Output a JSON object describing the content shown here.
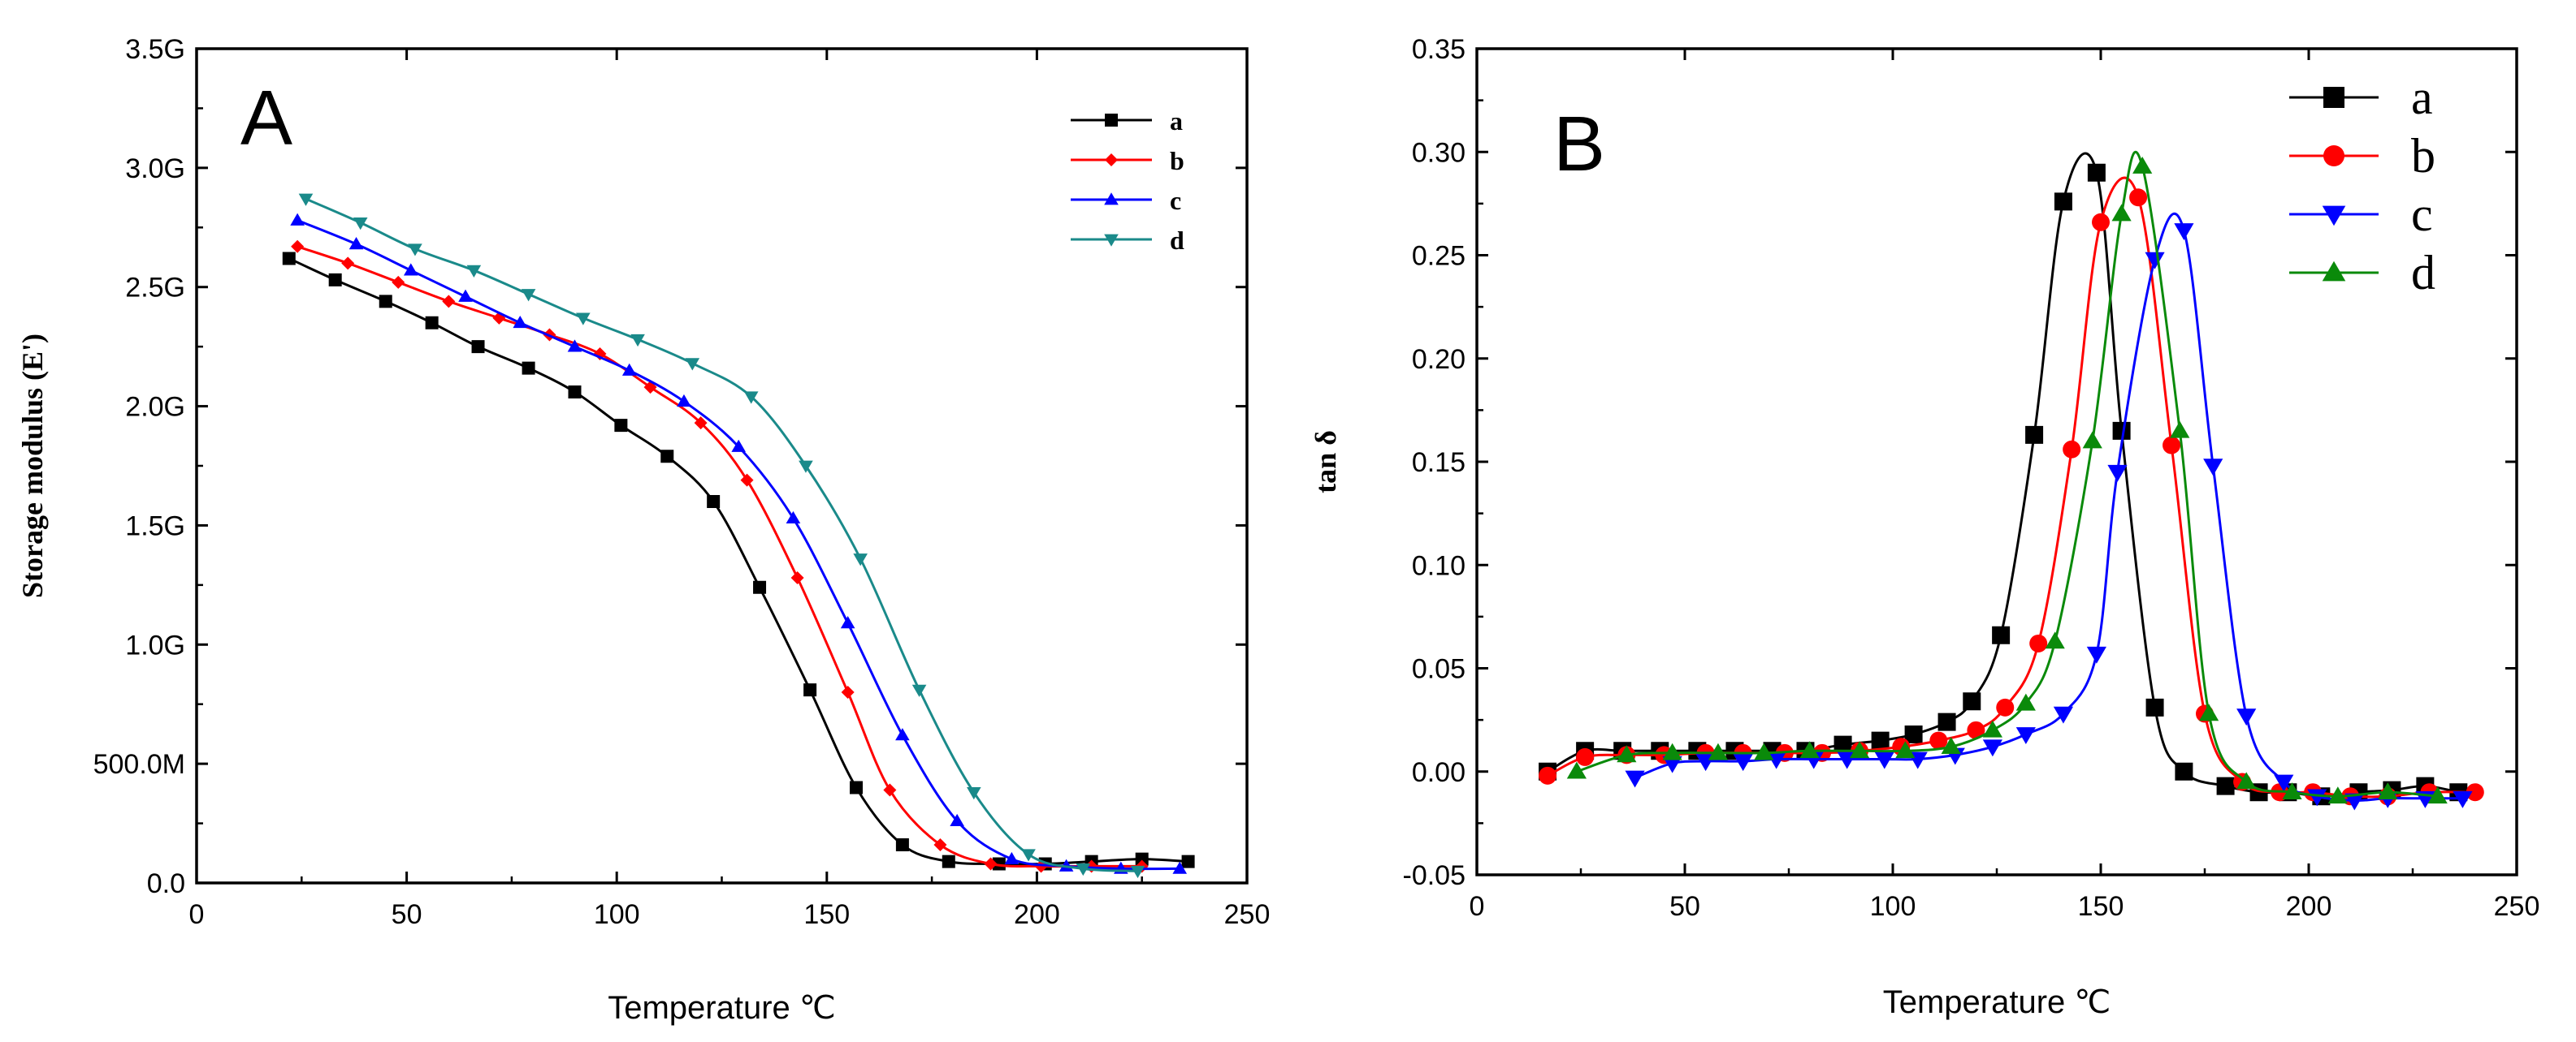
{
  "chart_data": [
    {
      "type": "line",
      "panel_label": "A",
      "xlabel": "Temperature ℃",
      "ylabel": "Storage modulus (E')",
      "xlim": [
        0,
        250
      ],
      "ylim": [
        0,
        3.5
      ],
      "x_ticks": [
        0,
        50,
        100,
        150,
        200,
        250
      ],
      "x_tick_labels": [
        "0",
        "50",
        "100",
        "150",
        "200",
        "250"
      ],
      "y_ticks": [
        0,
        0.5,
        1.0,
        1.5,
        2.0,
        2.5,
        3.0,
        3.5
      ],
      "y_tick_labels": [
        "0.0",
        "500.0M",
        "1.0G",
        "1.5G",
        "2.0G",
        "2.5G",
        "3.0G",
        "3.5G"
      ],
      "legend_position": "top-right",
      "series": [
        {
          "name": "a",
          "color": "#000000",
          "marker": "square",
          "x": [
            22,
            33,
            45,
            56,
            67,
            79,
            90,
            101,
            112,
            123,
            134,
            146,
            157,
            168,
            179,
            191,
            202,
            213,
            225,
            236
          ],
          "y": [
            2.62,
            2.53,
            2.44,
            2.35,
            2.25,
            2.16,
            2.06,
            1.92,
            1.79,
            1.6,
            1.24,
            0.81,
            0.4,
            0.16,
            0.09,
            0.08,
            0.08,
            0.09,
            0.1,
            0.09
          ]
        },
        {
          "name": "b",
          "color": "#ff0000",
          "marker": "diamond",
          "x": [
            24,
            36,
            48,
            60,
            72,
            84,
            96,
            108,
            120,
            131,
            143,
            155,
            165,
            177,
            189,
            201,
            213,
            225
          ],
          "y": [
            2.67,
            2.6,
            2.52,
            2.44,
            2.37,
            2.3,
            2.22,
            2.08,
            1.93,
            1.69,
            1.28,
            0.8,
            0.39,
            0.16,
            0.08,
            0.07,
            0.07,
            0.07
          ]
        },
        {
          "name": "c",
          "color": "#0000ff",
          "marker": "triangle-up",
          "x": [
            24,
            38,
            51,
            64,
            77,
            90,
            103,
            116,
            129,
            142,
            155,
            168,
            181,
            194,
            207,
            220,
            234
          ],
          "y": [
            2.78,
            2.68,
            2.57,
            2.46,
            2.35,
            2.25,
            2.15,
            2.02,
            1.83,
            1.53,
            1.09,
            0.62,
            0.26,
            0.1,
            0.07,
            0.06,
            0.06
          ]
        },
        {
          "name": "d",
          "color": "#1a8a8a",
          "marker": "triangle-down",
          "x": [
            26,
            39,
            52,
            66,
            79,
            92,
            105,
            118,
            132,
            145,
            158,
            172,
            185,
            198,
            211,
            224
          ],
          "y": [
            2.87,
            2.77,
            2.66,
            2.57,
            2.47,
            2.37,
            2.28,
            2.18,
            2.04,
            1.75,
            1.36,
            0.81,
            0.38,
            0.12,
            0.06,
            0.05
          ]
        }
      ]
    },
    {
      "type": "line",
      "panel_label": "B",
      "xlabel": "Temperature ℃",
      "ylabel": "tan δ",
      "xlim": [
        0,
        250
      ],
      "ylim": [
        -0.05,
        0.35
      ],
      "x_ticks": [
        0,
        50,
        100,
        150,
        200,
        250
      ],
      "x_tick_labels": [
        "0",
        "50",
        "100",
        "150",
        "200",
        "250"
      ],
      "y_ticks": [
        -0.05,
        0,
        0.05,
        0.1,
        0.15,
        0.2,
        0.25,
        0.3,
        0.35
      ],
      "y_tick_labels": [
        "-0.05",
        "0.00",
        "0.05",
        "0.10",
        "0.15",
        "0.20",
        "0.25",
        "0.30",
        "0.35"
      ],
      "legend_position": "top-right",
      "series": [
        {
          "name": "a",
          "color": "#000000",
          "marker": "square",
          "x": [
            17,
            26,
            35,
            44,
            53,
            62,
            71,
            79,
            88,
            97,
            105,
            113,
            119,
            126,
            134,
            141,
            149,
            155,
            163,
            170,
            180,
            188,
            195,
            203,
            212,
            220,
            228,
            236
          ],
          "y": [
            0.0,
            0.01,
            0.01,
            0.01,
            0.01,
            0.01,
            0.01,
            0.01,
            0.013,
            0.015,
            0.018,
            0.024,
            0.034,
            0.066,
            0.163,
            0.276,
            0.29,
            0.165,
            0.031,
            0.0,
            -0.007,
            -0.01,
            -0.01,
            -0.012,
            -0.01,
            -0.009,
            -0.007,
            -0.01
          ]
        },
        {
          "name": "b",
          "color": "#ff0000",
          "marker": "circle",
          "x": [
            17,
            26,
            36,
            45,
            55,
            64,
            74,
            83,
            92,
            102,
            111,
            120,
            127,
            135,
            143,
            150,
            159,
            167,
            175,
            184,
            193,
            201,
            210,
            219,
            229,
            240
          ],
          "y": [
            -0.002,
            0.007,
            0.008,
            0.008,
            0.009,
            0.009,
            0.009,
            0.009,
            0.01,
            0.012,
            0.015,
            0.02,
            0.031,
            0.062,
            0.156,
            0.266,
            0.278,
            0.158,
            0.028,
            -0.005,
            -0.01,
            -0.01,
            -0.012,
            -0.012,
            -0.01,
            -0.01
          ]
        },
        {
          "name": "c",
          "color": "#0000ff",
          "marker": "triangle-down",
          "x": [
            38,
            47,
            55,
            64,
            72,
            81,
            89,
            98,
            106,
            115,
            124,
            132,
            141,
            149,
            154,
            163,
            170,
            177,
            185,
            194,
            202,
            211,
            219,
            228,
            237
          ],
          "y": [
            -0.003,
            0.004,
            0.005,
            0.005,
            0.006,
            0.006,
            0.006,
            0.006,
            0.006,
            0.008,
            0.012,
            0.018,
            0.028,
            0.057,
            0.145,
            0.248,
            0.262,
            0.148,
            0.027,
            -0.005,
            -0.012,
            -0.014,
            -0.013,
            -0.013,
            -0.013
          ]
        },
        {
          "name": "d",
          "color": "#0a8a0a",
          "marker": "triangle-up",
          "x": [
            24,
            36,
            47,
            58,
            69,
            80,
            92,
            103,
            114,
            124,
            132,
            139,
            148,
            155,
            160,
            169,
            176,
            185,
            196,
            207,
            219,
            231
          ],
          "y": [
            0.0,
            0.008,
            0.009,
            0.009,
            0.009,
            0.01,
            0.01,
            0.01,
            0.012,
            0.02,
            0.033,
            0.063,
            0.16,
            0.27,
            0.293,
            0.165,
            0.028,
            -0.005,
            -0.01,
            -0.012,
            -0.01,
            -0.012
          ]
        }
      ]
    }
  ]
}
